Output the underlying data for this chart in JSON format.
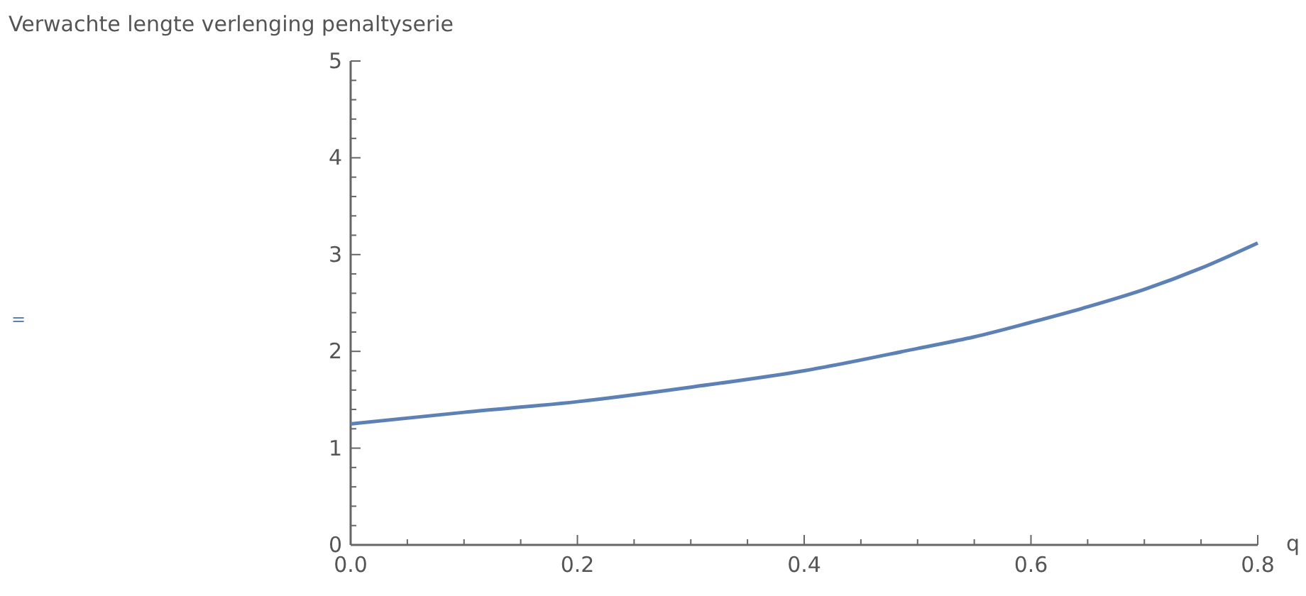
{
  "chart_data": {
    "type": "line",
    "title": "Verwachte lengte verlenging penaltyserie",
    "xlabel": "q",
    "annotations": [
      "="
    ],
    "series": [
      {
        "color": "#5e81b5",
        "x": [
          0,
          0.1,
          0.2,
          0.3,
          0.4,
          0.5,
          0.55,
          0.6,
          0.65,
          0.7,
          0.75,
          0.8
        ],
        "values": [
          1.25,
          1.37,
          1.48,
          1.63,
          1.8,
          2.03,
          2.15,
          2.3,
          2.46,
          2.64,
          2.86,
          3.12
        ]
      }
    ],
    "xlim": [
      0,
      0.8
    ],
    "ylim": [
      0,
      5
    ],
    "xticks": [
      {
        "value": 0,
        "label": "0.0"
      },
      {
        "value": 0.05,
        "label": null
      },
      {
        "value": 0.1,
        "label": null
      },
      {
        "value": 0.15,
        "label": null
      },
      0.2,
      {
        "value": 0.25,
        "label": null
      },
      {
        "value": 0.3,
        "label": null
      },
      {
        "value": 0.35,
        "label": null
      },
      0.4,
      {
        "value": 0.45,
        "label": null
      },
      {
        "value": 0.5,
        "label": null
      },
      {
        "value": 0.55,
        "label": null
      },
      0.6,
      {
        "value": 0.65,
        "label": null
      },
      {
        "value": 0.7,
        "label": null
      },
      {
        "value": 0.75,
        "label": null
      },
      0.8
    ],
    "yticks": [
      0,
      {
        "value": 0.2,
        "label": null
      },
      {
        "value": 0.4,
        "label": null
      },
      {
        "value": 0.6,
        "label": null
      },
      {
        "value": 0.8,
        "label": null
      },
      1,
      {
        "value": 1.2,
        "label": null
      },
      {
        "value": 1.4,
        "label": null
      },
      {
        "value": 1.6,
        "label": null
      },
      {
        "value": 1.8,
        "label": null
      },
      2,
      {
        "value": 2.2,
        "label": null
      },
      {
        "value": 2.4,
        "label": null
      },
      {
        "value": 2.6,
        "label": null
      },
      {
        "value": 2.8,
        "label": null
      },
      3,
      {
        "value": 3.2,
        "label": null
      },
      {
        "value": 3.4,
        "label": null
      },
      {
        "value": 3.6,
        "label": null
      },
      {
        "value": 3.8,
        "label": null
      },
      4,
      {
        "value": 4.2,
        "label": null
      },
      {
        "value": 4.4,
        "label": null
      },
      {
        "value": 4.6,
        "label": null
      },
      {
        "value": 4.8,
        "label": null
      },
      5
    ],
    "marker": "none",
    "line_style": "solid"
  }
}
